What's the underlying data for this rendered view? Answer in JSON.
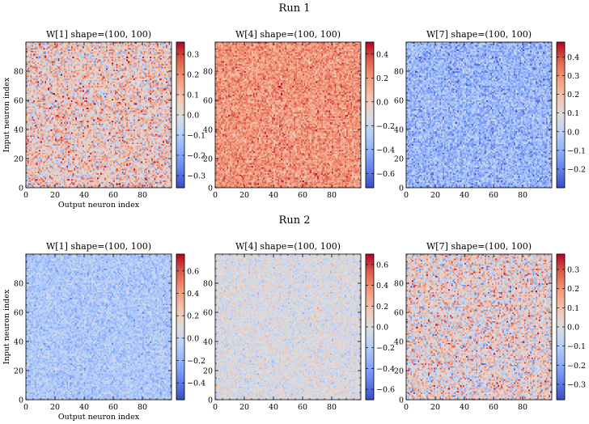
{
  "runs": [
    {
      "title": "Run 1",
      "panels": [
        {
          "title": "W[1]  shape=(100, 100)",
          "show_ylabel": true,
          "show_xlabel": true,
          "colorbar": {
            "vmin": -0.36,
            "vmax": 0.36,
            "ticks": [
              "0.3",
              "0.2",
              "0.1",
              "0.0",
              "−0.1",
              "−0.2",
              "−0.3"
            ],
            "tick_values": [
              0.3,
              0.2,
              0.1,
              0.0,
              -0.1,
              -0.2,
              -0.3
            ]
          },
          "pattern": {
            "mean": 0.06,
            "sd": 0.12,
            "seed": 11,
            "stripes": [
              66,
              70
            ]
          }
        },
        {
          "title": "W[4]  shape=(100, 100)",
          "show_ylabel": false,
          "show_xlabel": false,
          "colorbar": {
            "vmin": -0.72,
            "vmax": 0.5,
            "ticks": [
              "0.4",
              "0.2",
              "0.0",
              "−0.2",
              "−0.4",
              "−0.6"
            ],
            "tick_values": [
              0.4,
              0.2,
              0.0,
              -0.2,
              -0.4,
              -0.6
            ]
          },
          "pattern": {
            "mean": 0.2,
            "sd": 0.1,
            "seed": 23,
            "stripes": []
          }
        },
        {
          "title": "W[7]  shape=(100, 100)",
          "show_ylabel": false,
          "show_xlabel": false,
          "colorbar": {
            "vmin": -0.3,
            "vmax": 0.48,
            "ticks": [
              "0.4",
              "0.3",
              "0.2",
              "0.1",
              "0.0",
              "−0.1",
              "−0.2"
            ],
            "tick_values": [
              0.4,
              0.3,
              0.2,
              0.1,
              0.0,
              -0.1,
              -0.2
            ]
          },
          "pattern": {
            "mean": -0.08,
            "sd": 0.08,
            "seed": 37,
            "stripes": []
          }
        }
      ]
    },
    {
      "title": "Run 2",
      "panels": [
        {
          "title": "W[1]  shape=(100, 100)",
          "show_ylabel": true,
          "show_xlabel": true,
          "colorbar": {
            "vmin": -0.55,
            "vmax": 0.75,
            "ticks": [
              "0.6",
              "0.4",
              "0.2",
              "0.0",
              "−0.2",
              "−0.4"
            ],
            "tick_values": [
              0.6,
              0.4,
              0.2,
              0.0,
              -0.2,
              -0.4
            ]
          },
          "pattern": {
            "mean": -0.1,
            "sd": 0.09,
            "seed": 41,
            "stripes": []
          }
        },
        {
          "title": "W[4]  shape=(100, 100)",
          "show_ylabel": false,
          "show_xlabel": false,
          "colorbar": {
            "vmin": -0.7,
            "vmax": 0.7,
            "ticks": [
              "0.6",
              "0.4",
              "0.2",
              "0.0",
              "−0.2",
              "−0.4",
              "−0.6"
            ],
            "tick_values": [
              0.6,
              0.4,
              0.2,
              0.0,
              -0.2,
              -0.4,
              -0.6
            ]
          },
          "pattern": {
            "mean": -0.02,
            "sd": 0.1,
            "seed": 53,
            "stripes": []
          }
        },
        {
          "title": "W[7]  shape=(100, 100)",
          "show_ylabel": false,
          "show_xlabel": false,
          "colorbar": {
            "vmin": -0.38,
            "vmax": 0.38,
            "ticks": [
              "0.3",
              "0.2",
              "0.1",
              "0.0",
              "−0.1",
              "−0.2",
              "−0.3"
            ],
            "tick_values": [
              0.3,
              0.2,
              0.1,
              0.0,
              -0.1,
              -0.2,
              -0.3
            ]
          },
          "pattern": {
            "mean": 0.03,
            "sd": 0.13,
            "seed": 67,
            "stripes": []
          }
        }
      ]
    }
  ],
  "chart_data": [
    {
      "type": "heatmap",
      "run": "Run 1",
      "title": "W[1]  shape=(100, 100)",
      "shape": [
        100,
        100
      ],
      "xlabel": "Output neuron index",
      "ylabel": "Input neuron index",
      "xlim": [
        0,
        100
      ],
      "ylim": [
        0,
        100
      ],
      "xticks": [
        0,
        20,
        40,
        60,
        80
      ],
      "yticks": [
        0,
        20,
        40,
        60,
        80
      ],
      "colorbar_range": [
        -0.36,
        0.36
      ],
      "colormap": "coolwarm"
    },
    {
      "type": "heatmap",
      "run": "Run 1",
      "title": "W[4]  shape=(100, 100)",
      "shape": [
        100,
        100
      ],
      "xlim": [
        0,
        100
      ],
      "ylim": [
        0,
        100
      ],
      "xticks": [
        0,
        20,
        40,
        60,
        80
      ],
      "yticks": [
        0,
        20,
        40,
        60,
        80
      ],
      "colorbar_range": [
        -0.72,
        0.5
      ],
      "colormap": "coolwarm"
    },
    {
      "type": "heatmap",
      "run": "Run 1",
      "title": "W[7]  shape=(100, 100)",
      "shape": [
        100,
        100
      ],
      "xlim": [
        0,
        100
      ],
      "ylim": [
        0,
        100
      ],
      "xticks": [
        0,
        20,
        40,
        60,
        80
      ],
      "yticks": [
        0,
        20,
        40,
        60,
        80
      ],
      "colorbar_range": [
        -0.3,
        0.48
      ],
      "colormap": "coolwarm"
    },
    {
      "type": "heatmap",
      "run": "Run 2",
      "title": "W[1]  shape=(100, 100)",
      "shape": [
        100,
        100
      ],
      "xlabel": "Output neuron index",
      "ylabel": "Input neuron index",
      "xlim": [
        0,
        100
      ],
      "ylim": [
        0,
        100
      ],
      "xticks": [
        0,
        20,
        40,
        60,
        80
      ],
      "yticks": [
        0,
        20,
        40,
        60,
        80
      ],
      "colorbar_range": [
        -0.55,
        0.75
      ],
      "colormap": "coolwarm"
    },
    {
      "type": "heatmap",
      "run": "Run 2",
      "title": "W[4]  shape=(100, 100)",
      "shape": [
        100,
        100
      ],
      "xlim": [
        0,
        100
      ],
      "ylim": [
        0,
        100
      ],
      "xticks": [
        0,
        20,
        40,
        60,
        80
      ],
      "yticks": [
        0,
        20,
        40,
        60,
        80
      ],
      "colorbar_range": [
        -0.7,
        0.7
      ],
      "colormap": "coolwarm"
    },
    {
      "type": "heatmap",
      "run": "Run 2",
      "title": "W[7]  shape=(100, 100)",
      "shape": [
        100,
        100
      ],
      "xlim": [
        0,
        100
      ],
      "ylim": [
        0,
        100
      ],
      "xticks": [
        0,
        20,
        40,
        60,
        80
      ],
      "yticks": [
        0,
        20,
        40,
        60,
        80
      ],
      "colorbar_range": [
        -0.38,
        0.38
      ],
      "colormap": "coolwarm"
    }
  ],
  "axes": {
    "xlabel": "Output neuron index",
    "ylabel": "Input neuron index",
    "ticks": [
      "0",
      "20",
      "40",
      "60",
      "80"
    ],
    "tick_values": [
      0,
      20,
      40,
      60,
      80
    ]
  }
}
